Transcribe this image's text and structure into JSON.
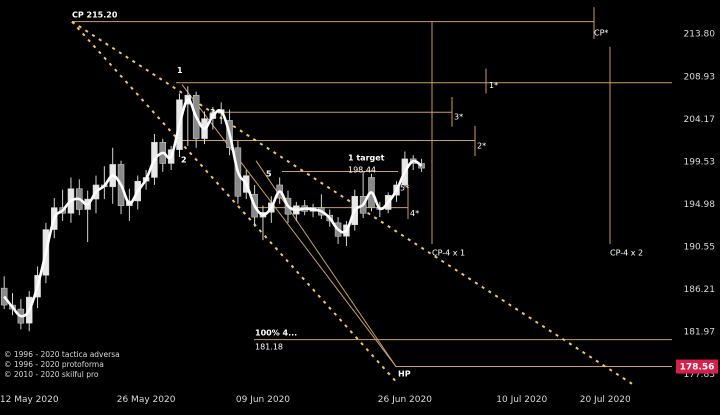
{
  "chart_data": {
    "type": "candlestick",
    "y_ticks": [
      "213.80",
      "208.93",
      "204.17",
      "199.53",
      "194.98",
      "190.55",
      "186.21",
      "181.97",
      "177.83"
    ],
    "y_tick_values": [
      213.8,
      208.93,
      204.17,
      199.53,
      194.98,
      190.55,
      186.21,
      181.97,
      177.83
    ],
    "ylim": [
      176.5,
      217.5
    ],
    "x_ticks": [
      "12 May 2020",
      "26 May 2020",
      "09 Jun 2020",
      "26 Jun 2020",
      "10 Jul 2020",
      "20 Jul 2020"
    ],
    "x_tick_days": [
      0,
      14,
      28,
      45,
      59,
      69
    ],
    "xlim": [
      -3.5,
      77
    ],
    "current_price": "178.56",
    "current_price_value": 178.56,
    "candles": [
      {
        "d": -3,
        "o": 186.3,
        "h": 187.5,
        "l": 184.2,
        "c": 184.6
      },
      {
        "d": -2,
        "o": 184.6,
        "h": 185.8,
        "l": 183.6,
        "c": 184.2
      },
      {
        "d": -1,
        "o": 184.2,
        "h": 185.2,
        "l": 182.2,
        "c": 182.8
      },
      {
        "d": 0,
        "o": 182.8,
        "h": 186.0,
        "l": 182.0,
        "c": 185.4
      },
      {
        "d": 1,
        "o": 185.4,
        "h": 188.5,
        "l": 184.3,
        "c": 187.6
      },
      {
        "d": 2,
        "o": 187.6,
        "h": 193.0,
        "l": 186.8,
        "c": 192.3
      },
      {
        "d": 3,
        "o": 192.3,
        "h": 195.6,
        "l": 191.4,
        "c": 194.6
      },
      {
        "d": 4,
        "o": 194.6,
        "h": 196.5,
        "l": 193.2,
        "c": 194.0
      },
      {
        "d": 5,
        "o": 194.0,
        "h": 197.8,
        "l": 193.0,
        "c": 196.6
      },
      {
        "d": 6,
        "o": 196.6,
        "h": 197.6,
        "l": 193.8,
        "c": 194.4
      },
      {
        "d": 7,
        "o": 194.4,
        "h": 196.4,
        "l": 191.0,
        "c": 195.5
      },
      {
        "d": 8,
        "o": 195.5,
        "h": 198.0,
        "l": 194.0,
        "c": 197.0
      },
      {
        "d": 9,
        "o": 197.0,
        "h": 199.0,
        "l": 195.5,
        "c": 196.8
      },
      {
        "d": 10,
        "o": 196.8,
        "h": 201.0,
        "l": 195.0,
        "c": 199.2
      },
      {
        "d": 11,
        "o": 199.2,
        "h": 199.6,
        "l": 193.9,
        "c": 194.8
      },
      {
        "d": 12,
        "o": 194.8,
        "h": 196.6,
        "l": 193.2,
        "c": 195.3
      },
      {
        "d": 13,
        "o": 195.3,
        "h": 198.0,
        "l": 194.4,
        "c": 197.4
      },
      {
        "d": 14,
        "o": 197.4,
        "h": 198.6,
        "l": 196.5,
        "c": 197.8
      },
      {
        "d": 15,
        "o": 197.8,
        "h": 202.5,
        "l": 197.0,
        "c": 201.6
      },
      {
        "d": 16,
        "o": 201.6,
        "h": 202.0,
        "l": 198.4,
        "c": 199.3
      },
      {
        "d": 17,
        "o": 199.3,
        "h": 201.2,
        "l": 198.6,
        "c": 200.8
      },
      {
        "d": 18,
        "o": 200.8,
        "h": 207.0,
        "l": 200.0,
        "c": 206.3
      },
      {
        "d": 19,
        "o": 205.8,
        "h": 207.8,
        "l": 201.2,
        "c": 206.8
      },
      {
        "d": 20,
        "o": 206.8,
        "h": 207.2,
        "l": 201.0,
        "c": 202.0
      },
      {
        "d": 21,
        "o": 202.0,
        "h": 205.0,
        "l": 201.4,
        "c": 204.2
      },
      {
        "d": 22,
        "o": 204.2,
        "h": 205.5,
        "l": 203.0,
        "c": 204.8
      },
      {
        "d": 23,
        "o": 204.8,
        "h": 206.0,
        "l": 203.6,
        "c": 205.2
      },
      {
        "d": 24,
        "o": 204.0,
        "h": 205.2,
        "l": 200.2,
        "c": 201.0
      },
      {
        "d": 25,
        "o": 201.0,
        "h": 201.8,
        "l": 195.0,
        "c": 195.8
      },
      {
        "d": 26,
        "o": 196.2,
        "h": 198.6,
        "l": 195.5,
        "c": 198.0
      },
      {
        "d": 27,
        "o": 196.0,
        "h": 197.0,
        "l": 192.6,
        "c": 193.6
      },
      {
        "d": 28,
        "o": 193.6,
        "h": 194.8,
        "l": 191.2,
        "c": 194.1
      },
      {
        "d": 29,
        "o": 194.1,
        "h": 195.8,
        "l": 193.0,
        "c": 195.1
      },
      {
        "d": 30,
        "o": 197.0,
        "h": 197.8,
        "l": 195.0,
        "c": 195.6
      },
      {
        "d": 31,
        "o": 195.6,
        "h": 196.4,
        "l": 193.0,
        "c": 193.9
      },
      {
        "d": 32,
        "o": 193.9,
        "h": 195.2,
        "l": 193.2,
        "c": 194.8
      },
      {
        "d": 33,
        "o": 194.8,
        "h": 195.4,
        "l": 193.8,
        "c": 194.2
      },
      {
        "d": 34,
        "o": 194.2,
        "h": 195.0,
        "l": 193.6,
        "c": 194.6
      },
      {
        "d": 35,
        "o": 194.6,
        "h": 196.0,
        "l": 193.4,
        "c": 193.8
      },
      {
        "d": 36,
        "o": 193.8,
        "h": 194.4,
        "l": 192.6,
        "c": 193.2
      },
      {
        "d": 37,
        "o": 193.0,
        "h": 193.6,
        "l": 190.8,
        "c": 191.6
      },
      {
        "d": 38,
        "o": 191.6,
        "h": 193.2,
        "l": 190.6,
        "c": 192.8
      },
      {
        "d": 39,
        "o": 192.8,
        "h": 196.5,
        "l": 192.2,
        "c": 195.8
      },
      {
        "d": 40,
        "o": 195.8,
        "h": 198.4,
        "l": 193.5,
        "c": 194.0
      },
      {
        "d": 41,
        "o": 197.8,
        "h": 198.2,
        "l": 194.2,
        "c": 194.6
      },
      {
        "d": 42,
        "o": 194.6,
        "h": 195.2,
        "l": 193.6,
        "c": 194.4
      },
      {
        "d": 43,
        "o": 194.4,
        "h": 196.2,
        "l": 194.0,
        "c": 195.9
      },
      {
        "d": 44,
        "o": 195.9,
        "h": 197.4,
        "l": 195.2,
        "c": 197.0
      },
      {
        "d": 45,
        "o": 197.0,
        "h": 200.6,
        "l": 196.8,
        "c": 199.8
      },
      {
        "d": 46,
        "o": 199.8,
        "h": 200.2,
        "l": 198.6,
        "c": 199.3
      },
      {
        "d": 47,
        "o": 199.3,
        "h": 199.8,
        "l": 198.4,
        "c": 198.8
      }
    ],
    "annotations": {
      "cp_top": "CP 215.20",
      "cp_star": "CP*",
      "one_star": "1*",
      "two_star": "2*",
      "three_star": "3*",
      "four_star": "4*",
      "five_star": "5*",
      "five": "5",
      "one": "1",
      "two": "2",
      "three": "3",
      "target_label": "1 target",
      "target_value": "198.44",
      "cp4x1": "CP-4 x 1",
      "cp4x2": "CP-4 x 2",
      "pct_label": "100%  4...",
      "pct_value": "181.18",
      "hp": "HP"
    },
    "levels": {
      "cp": 215.2,
      "one_star": 208.2,
      "three_star": 204.9,
      "two_star": 201.8,
      "target": 198.44,
      "four_star": 194.6,
      "pct": 181.18,
      "hp": 178.56
    }
  },
  "copyright": [
    "© 1996 - 2020 tactica adversa",
    "© 1996 - 2020 protoforma",
    "© 2010 - 2020 skilful pro"
  ],
  "colors": {
    "background": "#000000",
    "level_line": "#c9a05a",
    "dotted_line": "#f2c75c",
    "candle": "#d4d4d4",
    "smooth": "#ffffff",
    "price_tag": "#d6204b"
  }
}
